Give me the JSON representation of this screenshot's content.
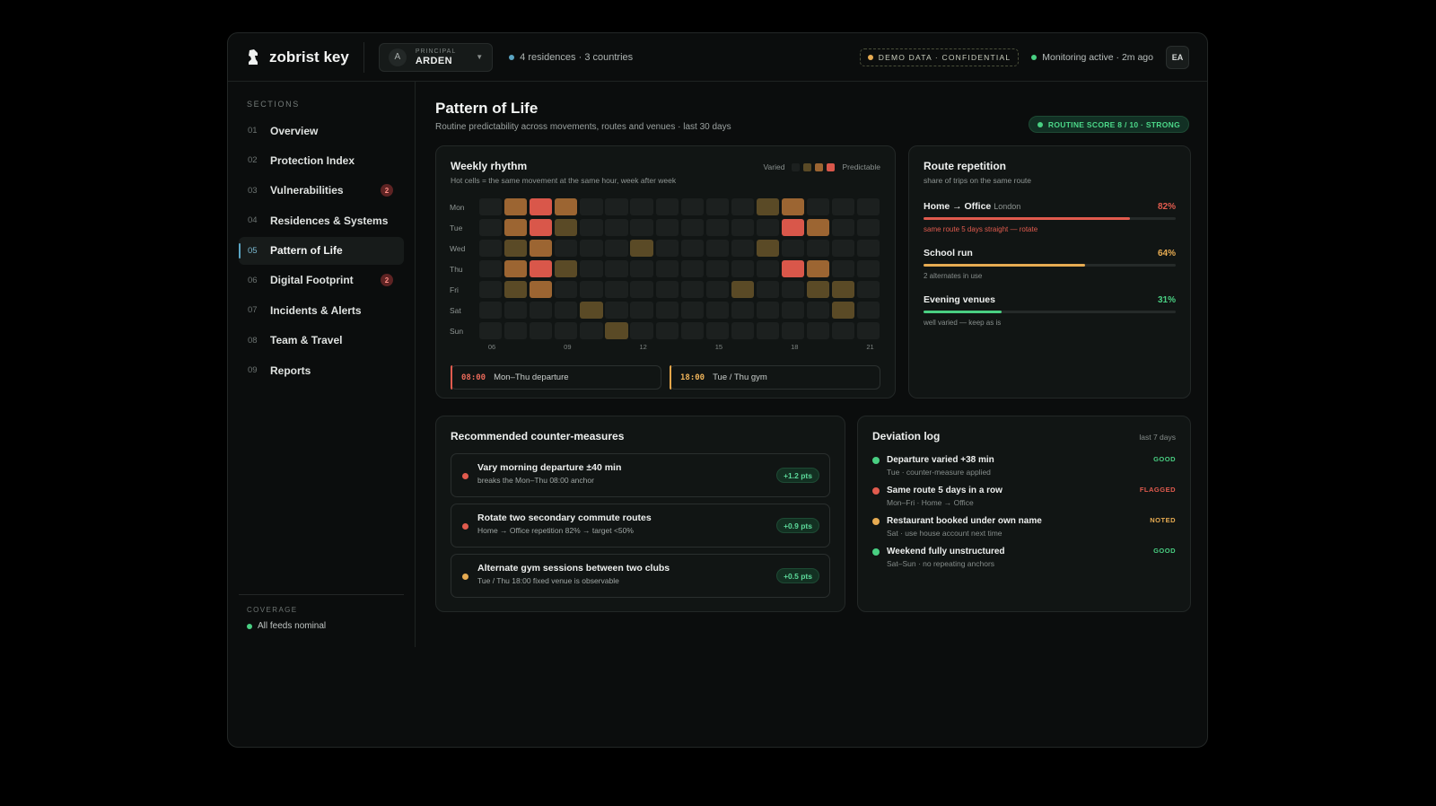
{
  "app": {
    "brand": "zobrist key",
    "principal_label": "PRINCIPAL",
    "principal_name": "ARDEN",
    "principal_initial": "A",
    "residences": "4 residences · 3 countries",
    "demo_badge": "DEMO DATA · CONFIDENTIAL",
    "monitoring": "Monitoring active · 2m ago",
    "user_initials": "EA"
  },
  "sidebar": {
    "heading": "SECTIONS",
    "items": [
      {
        "num": "01",
        "label": "Overview",
        "badge": ""
      },
      {
        "num": "02",
        "label": "Protection Index",
        "badge": ""
      },
      {
        "num": "03",
        "label": "Vulnerabilities",
        "badge": "2"
      },
      {
        "num": "04",
        "label": "Residences & Systems",
        "badge": ""
      },
      {
        "num": "05",
        "label": "Pattern of Life",
        "badge": "",
        "active": true
      },
      {
        "num": "06",
        "label": "Digital Footprint",
        "badge": "2"
      },
      {
        "num": "07",
        "label": "Incidents & Alerts",
        "badge": ""
      },
      {
        "num": "08",
        "label": "Team & Travel",
        "badge": ""
      },
      {
        "num": "09",
        "label": "Reports",
        "badge": ""
      }
    ],
    "coverage_heading": "COVERAGE",
    "coverage_status": "All feeds nominal"
  },
  "page": {
    "title": "Pattern of Life",
    "subtitle": "Routine predictability across movements, routes and venues · last 30 days",
    "score_badge": "ROUTINE SCORE 8 / 10 · STRONG"
  },
  "weekly": {
    "title": "Weekly rhythm",
    "subtitle": "Hot cells = the same movement at the same hour, week after week",
    "legend_low": "Varied",
    "legend_high": "Predictable",
    "days": [
      "Mon",
      "Tue",
      "Wed",
      "Thu",
      "Fri",
      "Sat",
      "Sun"
    ],
    "hour_ticks": [
      "06",
      "09",
      "12",
      "15",
      "18",
      "21"
    ],
    "grid": [
      [
        0,
        2,
        3,
        2,
        0,
        0,
        0,
        0,
        0,
        0,
        0,
        1,
        2,
        0,
        0,
        0
      ],
      [
        0,
        2,
        3,
        1,
        0,
        0,
        0,
        0,
        0,
        0,
        0,
        0,
        3,
        2,
        0,
        0
      ],
      [
        0,
        1,
        2,
        0,
        0,
        0,
        1,
        0,
        0,
        0,
        0,
        1,
        0,
        0,
        0,
        0
      ],
      [
        0,
        2,
        3,
        1,
        0,
        0,
        0,
        0,
        0,
        0,
        0,
        0,
        3,
        2,
        0,
        0
      ],
      [
        0,
        1,
        2,
        0,
        0,
        0,
        0,
        0,
        0,
        0,
        1,
        0,
        0,
        1,
        1,
        0
      ],
      [
        0,
        0,
        0,
        0,
        1,
        0,
        0,
        0,
        0,
        0,
        0,
        0,
        0,
        0,
        1,
        0
      ],
      [
        0,
        0,
        0,
        0,
        0,
        1,
        0,
        0,
        0,
        0,
        0,
        0,
        0,
        0,
        0,
        0
      ]
    ],
    "anchors": [
      {
        "time": "08:00",
        "label": "Mon–Thu departure"
      },
      {
        "time": "18:00",
        "label": "Tue / Thu gym"
      }
    ]
  },
  "routes": {
    "title": "Route repetition",
    "subtitle": "share of trips on the same route",
    "items": [
      {
        "name": "Home → Office",
        "city": "London",
        "pct_label": "82%",
        "pct": 82,
        "color": "#e15b4e",
        "note": "same route 5 days straight — rotate",
        "note_color": "#e15b4e"
      },
      {
        "name": "School run",
        "city": "",
        "pct_label": "64%",
        "pct": 64,
        "color": "#e6ab52",
        "note": "2 alternates in use",
        "note_color": "#878e8c"
      },
      {
        "name": "Evening venues",
        "city": "",
        "pct_label": "31%",
        "pct": 31,
        "color": "#49cf82",
        "note": "well varied — keep as is",
        "note_color": "#878e8c"
      }
    ]
  },
  "counter": {
    "title": "Recommended counter-measures",
    "items": [
      {
        "title": "Vary morning departure ±40 min",
        "sub": "breaks the Mon–Thu 08:00 anchor",
        "pts": "+1.2 pts",
        "color": "#e15b4e"
      },
      {
        "title": "Rotate two secondary commute routes",
        "sub": "Home → Office repetition 82% → target <50%",
        "pts": "+0.9 pts",
        "color": "#e15b4e"
      },
      {
        "title": "Alternate gym sessions between two clubs",
        "sub": "Tue / Thu 18:00 fixed venue is observable",
        "pts": "+0.5 pts",
        "color": "#e6ab52"
      }
    ]
  },
  "deviation": {
    "title": "Deviation log",
    "range": "last 7 days",
    "items": [
      {
        "title": "Departure varied +38 min",
        "sub": "Tue · counter-measure applied",
        "status": "GOOD",
        "color": "#49cf82"
      },
      {
        "title": "Same route 5 days in a row",
        "sub": "Mon–Fri · Home → Office",
        "status": "FLAGGED",
        "color": "#e15b4e"
      },
      {
        "title": "Restaurant booked under own name",
        "sub": "Sat · use house account next time",
        "status": "NOTED",
        "color": "#e6ab52"
      },
      {
        "title": "Weekend fully unstructured",
        "sub": "Sat–Sun · no repeating anchors",
        "status": "GOOD",
        "color": "#49cf82"
      }
    ]
  },
  "colors": {
    "good": "#49cf82",
    "flagged": "#e15b4e",
    "noted": "#e6ab52",
    "accent": "#5aa4c2"
  }
}
